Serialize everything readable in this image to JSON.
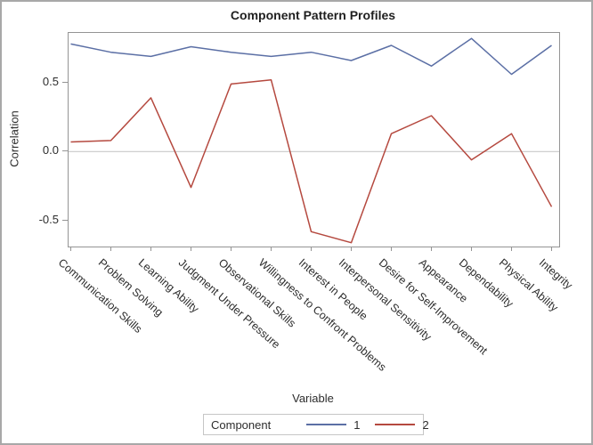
{
  "page": {
    "outer_border_color": "#a8a8a8",
    "background": "#ffffff"
  },
  "colors": {
    "series1_blue": "#5b6fa5",
    "series2_red": "#b5493f",
    "axis_frame": "#949494",
    "reference_line": "#c9c9c9",
    "text": "#2d2d2d"
  },
  "chart_data": {
    "type": "line",
    "title": "Component Pattern Profiles",
    "xlabel": "Variable",
    "ylabel": "Correlation",
    "categories": [
      "Communication Skills",
      "Problem Solving",
      "Learning Ability",
      "Judgment Under Pressure",
      "Observational Skills",
      "Willingness to Confront Problems",
      "Interest in People",
      "Interpersonal Sensitivity",
      "Desire for Self-Improvement",
      "Appearance",
      "Dependability",
      "Physical Ability",
      "Integrity"
    ],
    "series": [
      {
        "name": "1",
        "color": "#5b6fa5",
        "values": [
          0.78,
          0.72,
          0.69,
          0.76,
          0.72,
          0.69,
          0.72,
          0.66,
          0.77,
          0.62,
          0.82,
          0.56,
          0.77
        ]
      },
      {
        "name": "2",
        "color": "#b5493f",
        "values": [
          0.07,
          0.08,
          0.39,
          -0.26,
          0.49,
          0.52,
          -0.58,
          -0.66,
          0.13,
          0.26,
          -0.06,
          0.13,
          -0.4
        ]
      }
    ],
    "ylim": [
      -0.688,
      0.86
    ],
    "y_ticks": [
      {
        "label": "0.5",
        "value": 0.5
      },
      {
        "label": "0.0",
        "value": 0.0
      },
      {
        "label": "-0.5",
        "value": -0.5
      }
    ],
    "reference_line_y": 0,
    "grid": "off",
    "legend": {
      "title": "Component",
      "position": "bottom",
      "entries": [
        "1",
        "2"
      ]
    }
  }
}
